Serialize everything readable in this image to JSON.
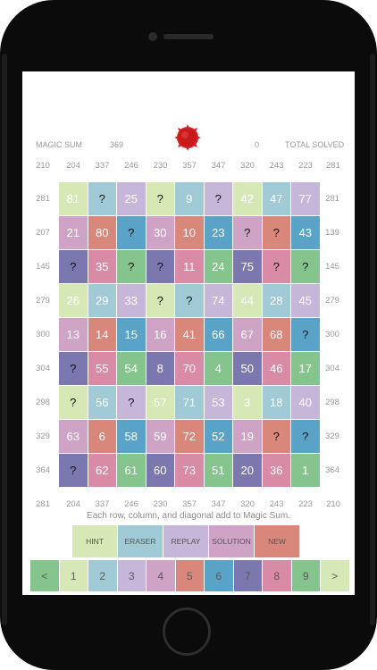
{
  "header": {
    "magic_sum_label": "MAGIC SUM",
    "magic_sum_value": "369",
    "solved_value": "0",
    "total_solved_label": "TOTAL SOLVED"
  },
  "sums": {
    "top": [
      "210",
      "204",
      "337",
      "246",
      "230",
      "357",
      "347",
      "320",
      "243",
      "223",
      "281"
    ],
    "bottom": [
      "281",
      "204",
      "337",
      "246",
      "230",
      "357",
      "347",
      "320",
      "243",
      "223",
      "210"
    ],
    "left": [
      "281",
      "207",
      "145",
      "279",
      "300",
      "304",
      "298",
      "329",
      "364"
    ],
    "right": [
      "281",
      "139",
      "145",
      "279",
      "300",
      "304",
      "298",
      "329",
      "364"
    ]
  },
  "grid": {
    "rows": [
      [
        "81",
        "?",
        "25",
        "?",
        "9",
        "?",
        "42",
        "47",
        "77"
      ],
      [
        "21",
        "80",
        "?",
        "30",
        "10",
        "23",
        "?",
        "?",
        "43"
      ],
      [
        "?",
        "35",
        "?",
        "?",
        "11",
        "24",
        "75",
        "?",
        "?"
      ],
      [
        "26",
        "29",
        "33",
        "?",
        "?",
        "74",
        "44",
        "28",
        "45"
      ],
      [
        "13",
        "14",
        "15",
        "16",
        "41",
        "66",
        "67",
        "68",
        "?"
      ],
      [
        "?",
        "55",
        "54",
        "8",
        "70",
        "4",
        "50",
        "46",
        "17"
      ],
      [
        "?",
        "56",
        "?",
        "57",
        "71",
        "53",
        "3",
        "18",
        "40"
      ],
      [
        "63",
        "6",
        "58",
        "59",
        "72",
        "52",
        "19",
        "?",
        "?"
      ],
      [
        "?",
        "62",
        "61",
        "60",
        "73",
        "51",
        "20",
        "36",
        "1"
      ]
    ],
    "colors": [
      [
        "#d6e8b5",
        "#9fcad6",
        "#c6b6da",
        "#d6e8b5",
        "#9fcad6",
        "#c6b6da",
        "#d6e8b5",
        "#9fcad6",
        "#c6b6da"
      ],
      [
        "#cfa3c6",
        "#d9877b",
        "#5aa3c8",
        "#cfa3c6",
        "#d9877b",
        "#5aa3c8",
        "#cfa3c6",
        "#d9877b",
        "#5aa3c8"
      ],
      [
        "#7b78b0",
        "#d98aa4",
        "#86c48d",
        "#7b78b0",
        "#d98aa4",
        "#86c48d",
        "#7b78b0",
        "#d98aa4",
        "#86c48d"
      ],
      [
        "#d6e8b5",
        "#9fcad6",
        "#c6b6da",
        "#d6e8b5",
        "#9fcad6",
        "#c6b6da",
        "#d6e8b5",
        "#9fcad6",
        "#c6b6da"
      ],
      [
        "#cfa3c6",
        "#d9877b",
        "#5aa3c8",
        "#cfa3c6",
        "#d9877b",
        "#5aa3c8",
        "#cfa3c6",
        "#d9877b",
        "#5aa3c8"
      ],
      [
        "#7b78b0",
        "#d98aa4",
        "#86c48d",
        "#7b78b0",
        "#d98aa4",
        "#86c48d",
        "#7b78b0",
        "#d98aa4",
        "#86c48d"
      ],
      [
        "#d6e8b5",
        "#9fcad6",
        "#c6b6da",
        "#d6e8b5",
        "#9fcad6",
        "#c6b6da",
        "#d6e8b5",
        "#9fcad6",
        "#c6b6da"
      ],
      [
        "#cfa3c6",
        "#d9877b",
        "#5aa3c8",
        "#cfa3c6",
        "#d9877b",
        "#5aa3c8",
        "#cfa3c6",
        "#d9877b",
        "#5aa3c8"
      ],
      [
        "#7b78b0",
        "#d98aa4",
        "#86c48d",
        "#7b78b0",
        "#d98aa4",
        "#86c48d",
        "#7b78b0",
        "#d98aa4",
        "#86c48d"
      ]
    ]
  },
  "instruction": "Each row, column, and diagonal add to Magic Sum.",
  "buttons": [
    {
      "label": "HINT",
      "color": "#d6e8b5"
    },
    {
      "label": "ERASER",
      "color": "#9fcad6"
    },
    {
      "label": "REPLAY",
      "color": "#c6b6da"
    },
    {
      "label": "SOLUTION",
      "color": "#cfa3c6"
    },
    {
      "label": "NEW",
      "color": "#d9877b"
    }
  ],
  "number_pad": [
    {
      "label": "<",
      "color": "#86c48d"
    },
    {
      "label": "1",
      "color": "#d6e8b5"
    },
    {
      "label": "2",
      "color": "#9fcad6"
    },
    {
      "label": "3",
      "color": "#c6b6da"
    },
    {
      "label": "4",
      "color": "#cfa3c6"
    },
    {
      "label": "5",
      "color": "#d9877b"
    },
    {
      "label": "6",
      "color": "#5aa3c8"
    },
    {
      "label": "7",
      "color": "#7b78b0"
    },
    {
      "label": "8",
      "color": "#d98aa4"
    },
    {
      "label": "9",
      "color": "#86c48d"
    },
    {
      "label": ">",
      "color": "#d6e8b5"
    }
  ],
  "icons": {
    "sun": "red-sun-icon"
  }
}
